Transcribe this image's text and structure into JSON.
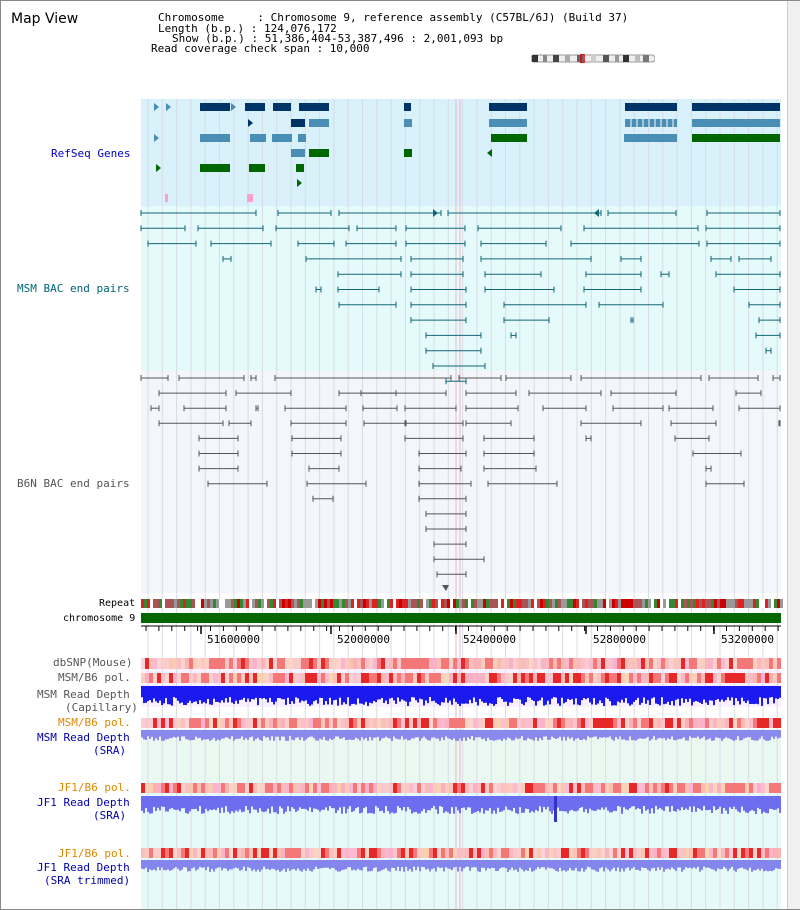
{
  "title": "Map View",
  "info": {
    "line1": "Chromosome     : Chromosome 9, reference assembly (C57BL/6J) (Build 37)",
    "line2": "Length (b.p.) : 124,076,172",
    "line3": "Show (b.p.) : 51,386,404-53,387,496 : 2,001,093 bp",
    "line4": "Read coverage check span : 10,000"
  },
  "tracks": {
    "refseq": "RefSeq Genes",
    "msm_bac": "MSM BAC end pairs",
    "b6n_bac": "B6N BAC end pairs",
    "repeat": "Repeat",
    "chromosome": "chromosome 9",
    "dbsnp": "dbSNP(Mouse)",
    "msm_b6_pol": "MSM/B6 pol.",
    "msm_depth_cap_1": "MSM Read Depth",
    "msm_depth_cap_2": "(Capillary)",
    "msm_b6_pol_sra": "MSM/B6 pol.",
    "msm_depth_sra_1": "MSM Read Depth",
    "msm_depth_sra_2": "(SRA)",
    "jf1_b6_pol": "JF1/B6 pol.",
    "jf1_depth_1": "JF1 Read Depth",
    "jf1_depth_2": "(SRA)",
    "jf1_b6_pol_2": "JF1/B6 pol.",
    "jf1_depth_tr_1": "JF1 Read Depth",
    "jf1_depth_tr_2": "(SRA trimmed)"
  },
  "axis": {
    "ticks": [
      "51600000",
      "52000000",
      "52400000",
      "52800000",
      "53200000"
    ]
  },
  "colors": {
    "refseq_bg": "#d9f1fb",
    "msm_bg": "#e5fbfb",
    "b6n_bg": "#f4f6fb",
    "refseq_dark": "#003366",
    "refseq_mid": "#4a8db5",
    "refseq_green": "#006600",
    "msm_line": "#116677",
    "b6n_line": "#555555",
    "chrom_green": "#006600",
    "label_blue": "#0000cc",
    "label_teal": "#006677",
    "label_orange": "#dd8800"
  }
}
